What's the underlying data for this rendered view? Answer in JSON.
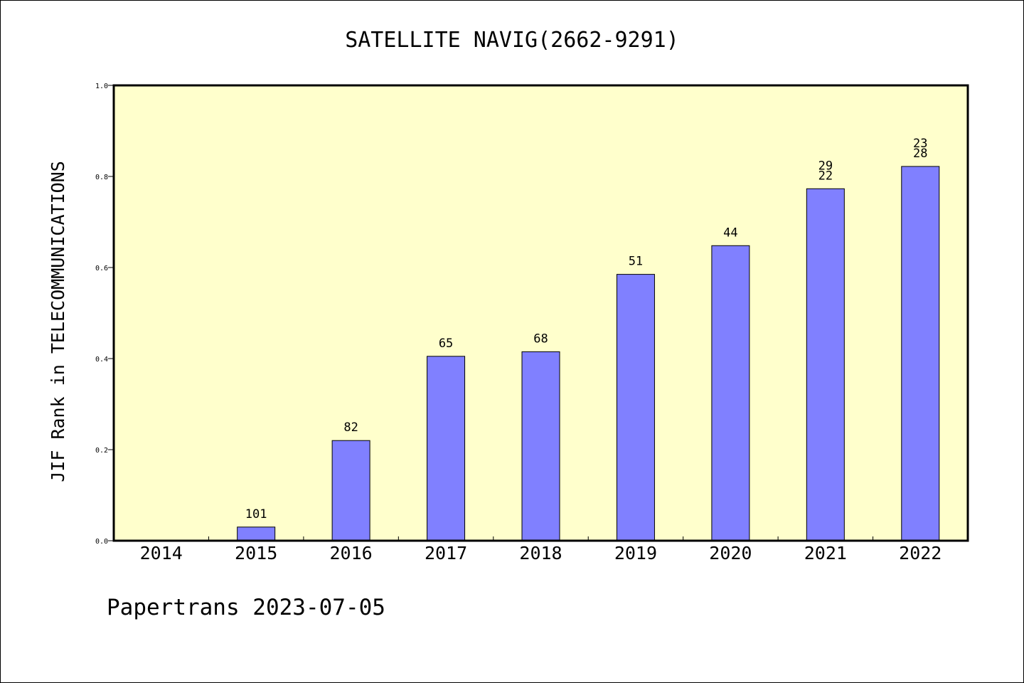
{
  "chart_data": {
    "type": "bar",
    "title": "SATELLITE NAVIG(2662-9291)",
    "xlabel": "",
    "ylabel": "JIF Rank in TELECOMMUNICATIONS",
    "ylim": [
      0,
      1.0
    ],
    "yticks": [
      "0.0",
      "0.2",
      "0.4",
      "0.6",
      "0.8",
      "1.0"
    ],
    "categories": [
      "2014",
      "2015",
      "2016",
      "2017",
      "2018",
      "2019",
      "2020",
      "2021",
      "2022"
    ],
    "values": [
      null,
      0.03,
      0.22,
      0.405,
      0.415,
      0.585,
      0.648,
      0.773,
      0.822
    ],
    "labels": [
      [],
      [
        "101"
      ],
      [
        "82"
      ],
      [
        "65"
      ],
      [
        "68"
      ],
      [
        "51"
      ],
      [
        "44"
      ],
      [
        "29",
        "22"
      ],
      [
        "23",
        "28"
      ]
    ],
    "grid": false,
    "colors": {
      "plot_background": "#ffffcc",
      "bar_fill": "#8080ff",
      "bar_stroke": "#000000",
      "axis": "#000000"
    }
  },
  "footer": {
    "text": "Papertrans 2023-07-05"
  }
}
